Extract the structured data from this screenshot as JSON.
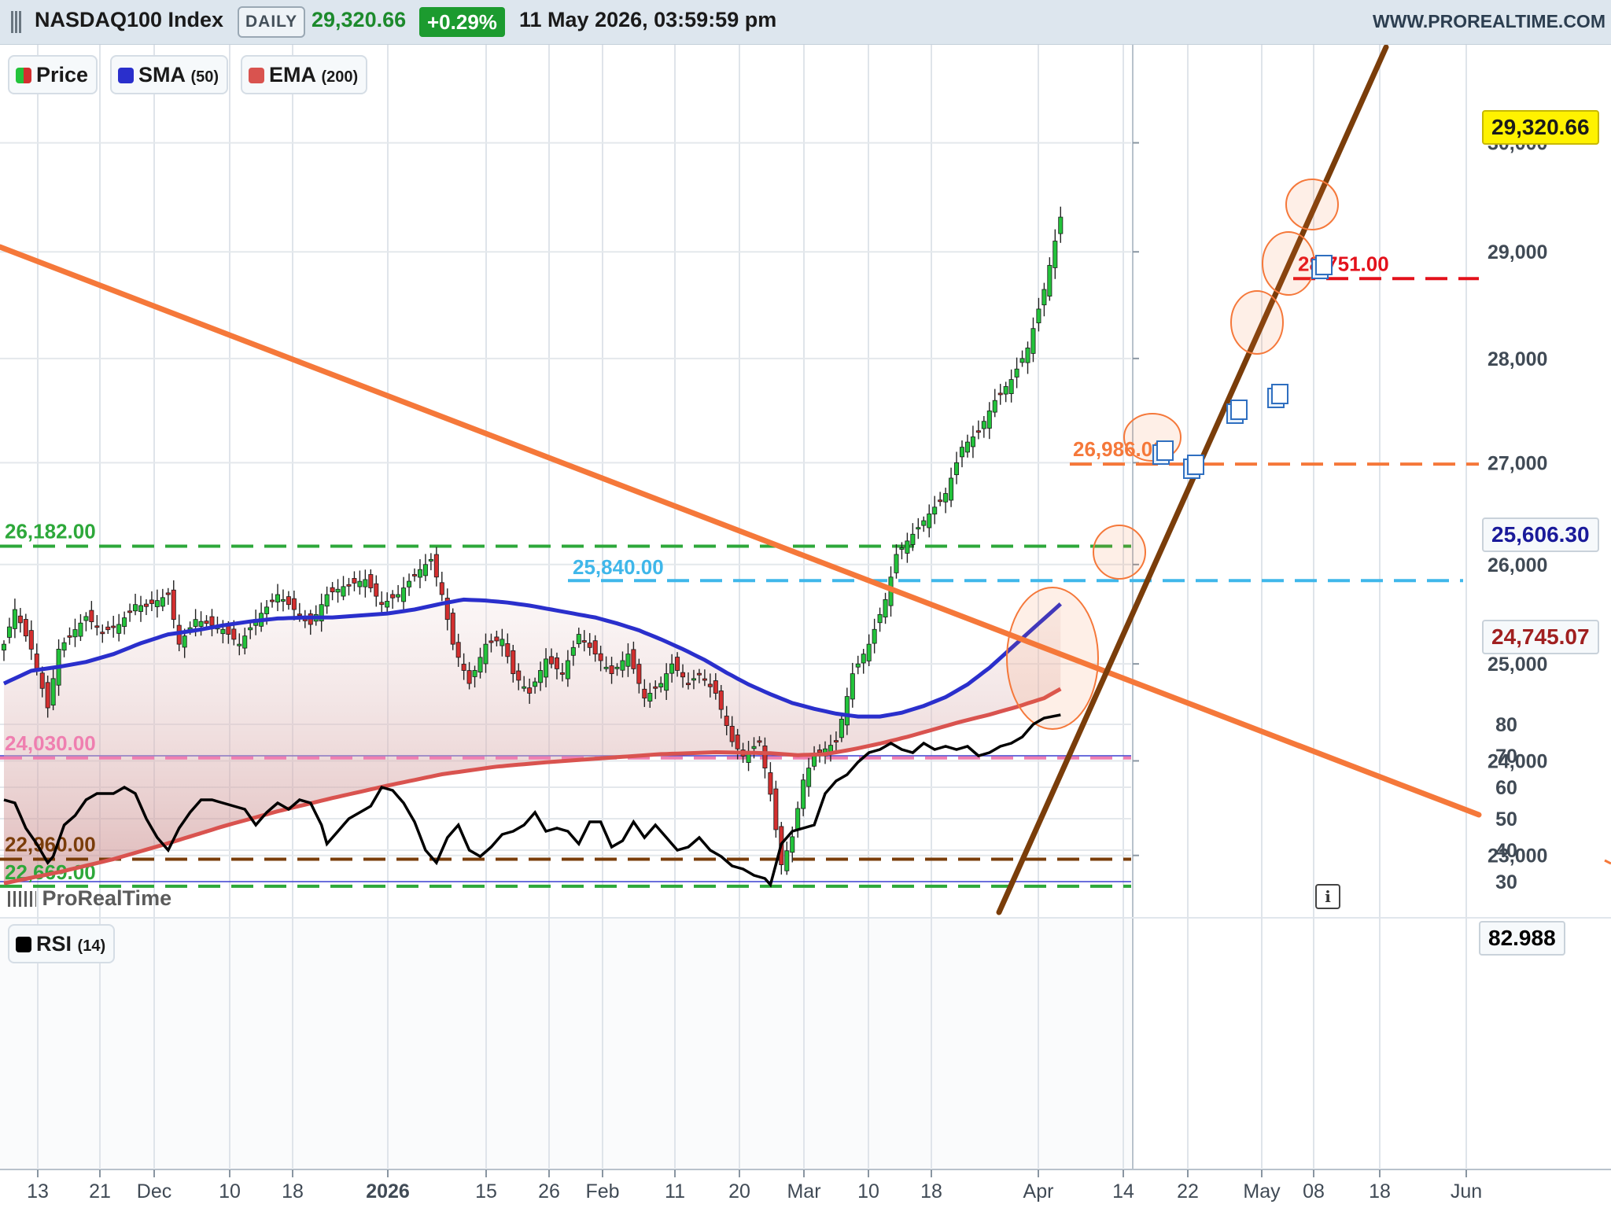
{
  "header": {
    "symbol": "NASDAQ100 Index",
    "timeframe": "DAILY",
    "last": "29,320.66",
    "change": "+0.29%",
    "datetime": "11 May 2026, 03:59:59 pm",
    "site": "WWW.PROREALTIME.COM",
    "change_color": "#1c9b2f"
  },
  "legend": {
    "price": "Price",
    "sma": "SMA",
    "sma_period": "(50)",
    "ema": "EMA",
    "ema_period": "(200)",
    "rsi": "RSI",
    "rsi_period": "(14)"
  },
  "watermark": "ProRealTime",
  "value_tags": {
    "price": "29,320.66",
    "sma": "25,606.30",
    "ema": "24,745.07",
    "rsi": "82.988"
  },
  "colors": {
    "up": "#23c33b",
    "down": "#d32f2f",
    "sma": "#2a2fcc",
    "ema": "#d9534f",
    "rsi": "#000000",
    "resistance_trend": "#f5783a",
    "support_trend": "#7a3d0a"
  },
  "chart_data": {
    "type": "candlestick",
    "price_axis": {
      "min": 22500,
      "max": 30000,
      "ticks": [
        "30,000",
        "29,000",
        "28,000",
        "27,000",
        "26,000",
        "25,000",
        "24,000",
        "23,000"
      ]
    },
    "time_axis_labels": [
      "13",
      "21",
      "Dec",
      "10",
      "18",
      "2026",
      "15",
      "26",
      "Feb",
      "11",
      "20",
      "Mar",
      "10",
      "18",
      "Apr",
      "14",
      "22",
      "May",
      "08",
      "18",
      "Jun"
    ],
    "horizontal_levels": [
      {
        "label": "28,751.00",
        "value": 28751,
        "color": "#e3111b"
      },
      {
        "label": "26,986.00",
        "value": 26986,
        "color": "#f5783a"
      },
      {
        "label": "26,182.00",
        "value": 26182,
        "color": "#2da83a"
      },
      {
        "label": "25,840.00",
        "value": 25840,
        "color": "#3fb7ea"
      },
      {
        "label": "24,030.00",
        "value": 24030,
        "color": "#ef7fb0"
      },
      {
        "label": "22,960.00",
        "value": 22960,
        "color": "#7a3d0a"
      },
      {
        "label": "22,669.00",
        "value": 22669,
        "color": "#2da83a"
      }
    ],
    "rsi": {
      "period": 14,
      "last": 82.988,
      "ticks": [
        "80",
        "70",
        "60",
        "50",
        "40",
        "30"
      ],
      "overbought": 70,
      "oversold": 30
    },
    "anchors": {
      "price": [
        [
          0,
          25200
        ],
        [
          2,
          25550
        ],
        [
          5,
          25150
        ],
        [
          8,
          24550
        ],
        [
          10,
          25150
        ],
        [
          15,
          25480
        ],
        [
          18,
          25320
        ],
        [
          21,
          25400
        ],
        [
          24,
          25600
        ],
        [
          26,
          25580
        ],
        [
          30,
          25700
        ],
        [
          32,
          25200
        ],
        [
          35,
          25450
        ],
        [
          40,
          25350
        ],
        [
          43,
          25200
        ],
        [
          46,
          25450
        ],
        [
          50,
          25700
        ],
        [
          53,
          25550
        ],
        [
          56,
          25400
        ],
        [
          59,
          25700
        ],
        [
          62,
          25780
        ],
        [
          66,
          25850
        ],
        [
          69,
          25600
        ],
        [
          72,
          25700
        ],
        [
          75,
          25900
        ],
        [
          78,
          26050
        ],
        [
          80,
          25700
        ],
        [
          82,
          25200
        ],
        [
          85,
          24800
        ],
        [
          88,
          25200
        ],
        [
          91,
          25250
        ],
        [
          93,
          24900
        ],
        [
          96,
          24700
        ],
        [
          99,
          25050
        ],
        [
          102,
          24900
        ],
        [
          105,
          25300
        ],
        [
          108,
          25100
        ],
        [
          111,
          24900
        ],
        [
          114,
          25100
        ],
        [
          117,
          24650
        ],
        [
          120,
          24800
        ],
        [
          122,
          25000
        ],
        [
          125,
          24800
        ],
        [
          127,
          24900
        ],
        [
          130,
          24700
        ],
        [
          133,
          24200
        ],
        [
          135,
          24050
        ],
        [
          138,
          24200
        ],
        [
          140,
          23650
        ],
        [
          142,
          22900
        ],
        [
          144,
          23200
        ],
        [
          146,
          23800
        ],
        [
          148,
          24050
        ],
        [
          152,
          24200
        ],
        [
          155,
          24900
        ],
        [
          158,
          25200
        ],
        [
          161,
          25650
        ],
        [
          163,
          26100
        ],
        [
          166,
          26300
        ],
        [
          169,
          26500
        ],
        [
          172,
          26700
        ],
        [
          175,
          27150
        ],
        [
          178,
          27300
        ],
        [
          181,
          27600
        ],
        [
          184,
          27800
        ],
        [
          187,
          28100
        ],
        [
          190,
          28650
        ],
        [
          192,
          29100
        ],
        [
          193,
          29321
        ]
      ],
      "sma": [
        [
          0,
          24800
        ],
        [
          5,
          24930
        ],
        [
          10,
          24970
        ],
        [
          15,
          25020
        ],
        [
          20,
          25100
        ],
        [
          25,
          25210
        ],
        [
          30,
          25300
        ],
        [
          35,
          25340
        ],
        [
          40,
          25390
        ],
        [
          45,
          25430
        ],
        [
          50,
          25460
        ],
        [
          55,
          25470
        ],
        [
          60,
          25470
        ],
        [
          65,
          25490
        ],
        [
          70,
          25510
        ],
        [
          75,
          25550
        ],
        [
          80,
          25610
        ],
        [
          84,
          25650
        ],
        [
          88,
          25640
        ],
        [
          92,
          25620
        ],
        [
          96,
          25590
        ],
        [
          100,
          25550
        ],
        [
          104,
          25510
        ],
        [
          108,
          25470
        ],
        [
          112,
          25410
        ],
        [
          116,
          25340
        ],
        [
          120,
          25250
        ],
        [
          124,
          25150
        ],
        [
          128,
          25040
        ],
        [
          132,
          24910
        ],
        [
          136,
          24790
        ],
        [
          140,
          24690
        ],
        [
          144,
          24600
        ],
        [
          148,
          24540
        ],
        [
          152,
          24490
        ],
        [
          156,
          24460
        ],
        [
          160,
          24460
        ],
        [
          164,
          24500
        ],
        [
          168,
          24570
        ],
        [
          172,
          24660
        ],
        [
          176,
          24790
        ],
        [
          180,
          24960
        ],
        [
          184,
          25160
        ],
        [
          188,
          25360
        ],
        [
          193,
          25606
        ]
      ],
      "ema": [
        [
          0,
          22700
        ],
        [
          10,
          22820
        ],
        [
          20,
          22960
        ],
        [
          30,
          23130
        ],
        [
          40,
          23310
        ],
        [
          50,
          23470
        ],
        [
          60,
          23610
        ],
        [
          70,
          23740
        ],
        [
          80,
          23860
        ],
        [
          90,
          23940
        ],
        [
          100,
          23990
        ],
        [
          110,
          24030
        ],
        [
          120,
          24070
        ],
        [
          130,
          24090
        ],
        [
          140,
          24080
        ],
        [
          145,
          24060
        ],
        [
          150,
          24070
        ],
        [
          155,
          24120
        ],
        [
          160,
          24180
        ],
        [
          165,
          24250
        ],
        [
          170,
          24330
        ],
        [
          175,
          24410
        ],
        [
          180,
          24480
        ],
        [
          185,
          24560
        ],
        [
          190,
          24650
        ],
        [
          193,
          24745
        ]
      ],
      "rsi": [
        [
          0,
          56
        ],
        [
          2,
          55
        ],
        [
          4,
          47
        ],
        [
          6,
          42
        ],
        [
          8,
          36
        ],
        [
          9,
          38
        ],
        [
          11,
          48
        ],
        [
          13,
          51
        ],
        [
          15,
          56
        ],
        [
          17,
          58
        ],
        [
          20,
          58
        ],
        [
          22,
          60
        ],
        [
          24,
          58
        ],
        [
          26,
          50
        ],
        [
          28,
          44
        ],
        [
          30,
          40
        ],
        [
          32,
          47
        ],
        [
          34,
          52
        ],
        [
          36,
          56
        ],
        [
          38,
          56
        ],
        [
          40,
          55
        ],
        [
          42,
          54
        ],
        [
          44,
          53
        ],
        [
          46,
          48
        ],
        [
          48,
          52
        ],
        [
          50,
          55
        ],
        [
          52,
          53
        ],
        [
          54,
          56
        ],
        [
          56,
          55
        ],
        [
          58,
          48
        ],
        [
          59,
          42
        ],
        [
          61,
          46
        ],
        [
          63,
          50
        ],
        [
          65,
          52
        ],
        [
          67,
          54
        ],
        [
          69,
          60
        ],
        [
          71,
          59
        ],
        [
          73,
          55
        ],
        [
          75,
          49
        ],
        [
          77,
          40
        ],
        [
          79,
          36
        ],
        [
          81,
          44
        ],
        [
          83,
          48
        ],
        [
          85,
          40
        ],
        [
          87,
          38
        ],
        [
          89,
          41
        ],
        [
          91,
          45
        ],
        [
          93,
          46
        ],
        [
          95,
          48
        ],
        [
          97,
          52
        ],
        [
          99,
          46
        ],
        [
          101,
          47
        ],
        [
          103,
          46
        ],
        [
          105,
          42
        ],
        [
          107,
          49
        ],
        [
          109,
          49
        ],
        [
          111,
          41
        ],
        [
          113,
          43
        ],
        [
          115,
          49
        ],
        [
          117,
          44
        ],
        [
          119,
          48
        ],
        [
          121,
          44
        ],
        [
          123,
          40
        ],
        [
          125,
          41
        ],
        [
          127,
          44
        ],
        [
          129,
          40
        ],
        [
          131,
          38
        ],
        [
          133,
          35
        ],
        [
          135,
          34
        ],
        [
          137,
          32
        ],
        [
          139,
          31
        ],
        [
          140,
          29
        ],
        [
          142,
          42
        ],
        [
          144,
          46
        ],
        [
          146,
          47
        ],
        [
          148,
          48
        ],
        [
          150,
          58
        ],
        [
          152,
          62
        ],
        [
          154,
          64
        ],
        [
          156,
          68
        ],
        [
          158,
          71
        ],
        [
          160,
          72
        ],
        [
          162,
          74
        ],
        [
          164,
          72
        ],
        [
          166,
          71
        ],
        [
          168,
          74
        ],
        [
          170,
          72
        ],
        [
          172,
          73
        ],
        [
          174,
          72
        ],
        [
          176,
          73
        ],
        [
          178,
          70
        ],
        [
          180,
          71
        ],
        [
          182,
          73
        ],
        [
          184,
          74
        ],
        [
          186,
          76
        ],
        [
          188,
          80
        ],
        [
          190,
          82
        ],
        [
          193,
          83
        ]
      ]
    }
  }
}
